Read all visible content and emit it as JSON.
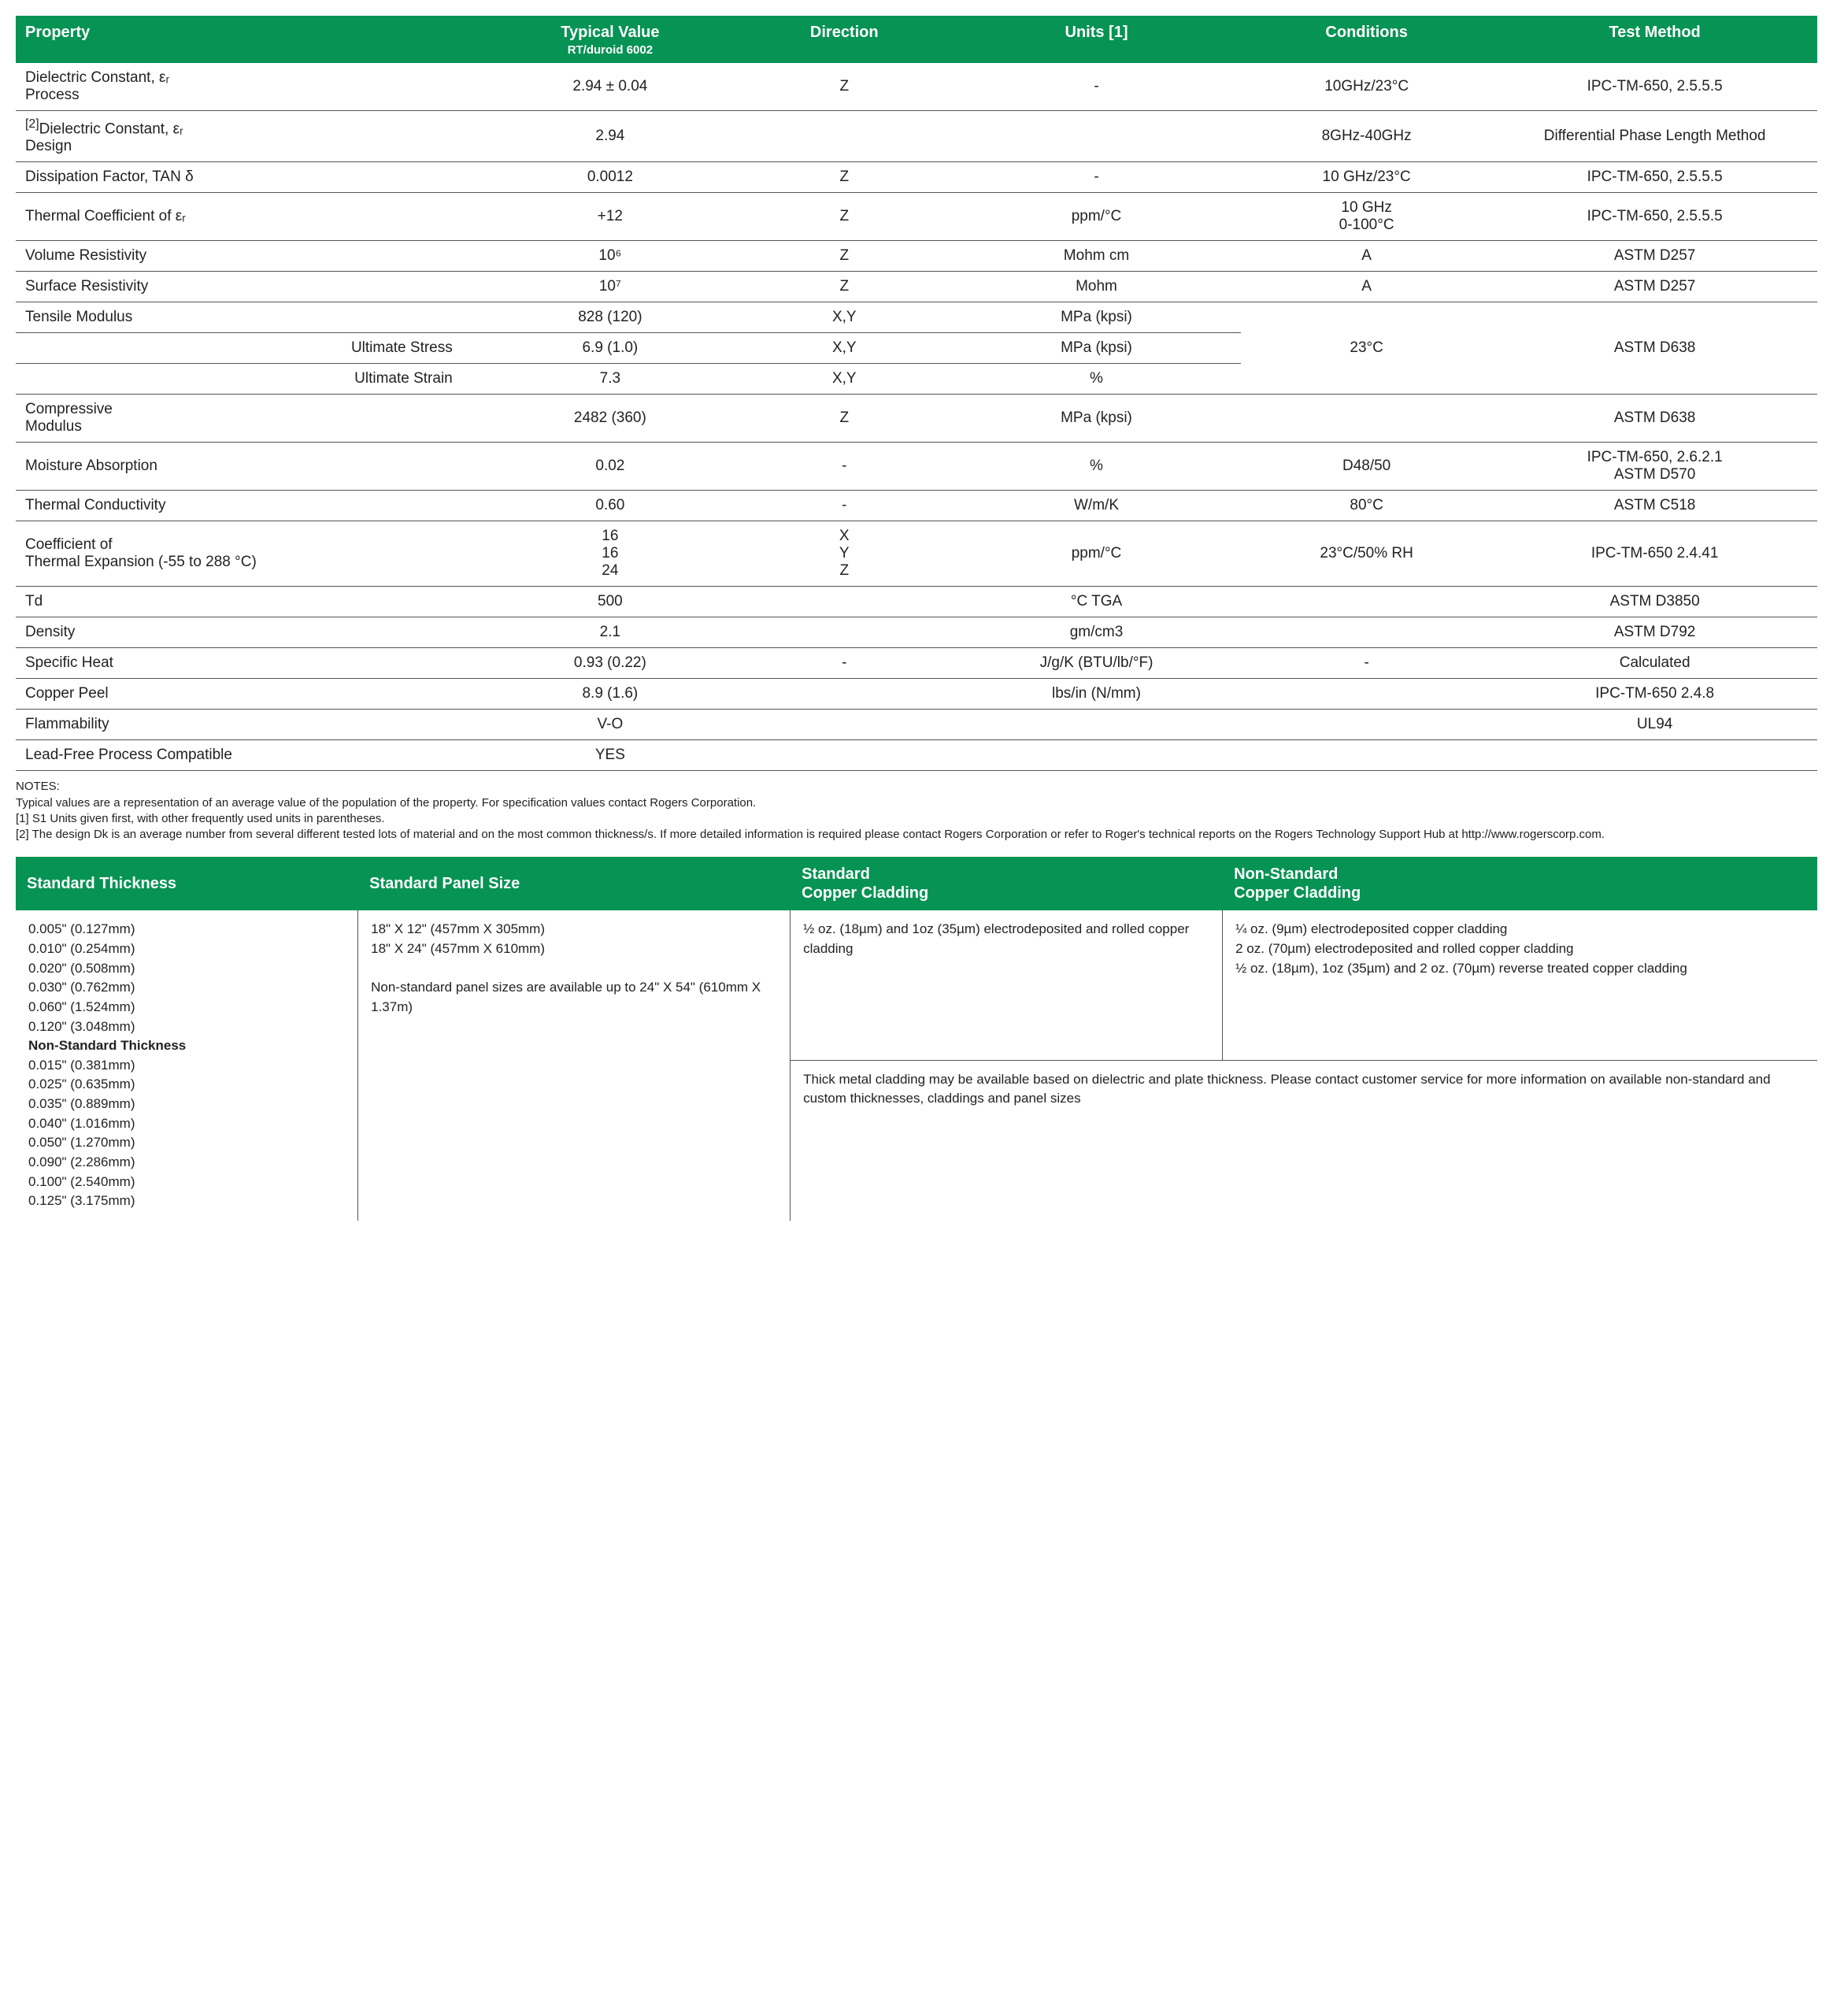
{
  "colors": {
    "header_bg": "#069353",
    "header_text": "#ffffff",
    "rule": "#555555",
    "body_text": "#222222"
  },
  "fonts": {
    "header_size_pt": 20,
    "body_size_pt": 19,
    "notes_size_pt": 15
  },
  "main_table": {
    "col_widths_pct": [
      26,
      14,
      12,
      16,
      14,
      18
    ],
    "headers": [
      {
        "label": "Property",
        "align": "left"
      },
      {
        "label": "Typical Value",
        "sub": "RT/duroid 6002",
        "align": "center"
      },
      {
        "label": "Direction",
        "align": "center"
      },
      {
        "label": "Units [1]",
        "align": "center"
      },
      {
        "label": "Conditions",
        "align": "center"
      },
      {
        "label": "Test Method",
        "align": "center"
      }
    ],
    "rows": [
      {
        "c": [
          "Dielectric Constant, εᵣ\nProcess",
          "2.94 ± 0.04",
          "Z",
          "-",
          "10GHz/23°C",
          "IPC-TM-650, 2.5.5.5"
        ],
        "align0": "left"
      },
      {
        "c": [
          "[2]Dielectric Constant, εᵣ\nDesign",
          "2.94",
          "",
          "",
          "8GHz-40GHz",
          "Differential Phase Length Method"
        ],
        "align0": "left",
        "sup0": true
      },
      {
        "c": [
          "Dissipation Factor, TAN δ",
          "0.0012",
          "Z",
          "-",
          "10 GHz/23°C",
          "IPC-TM-650, 2.5.5.5"
        ],
        "align0": "left"
      },
      {
        "c": [
          "Thermal Coefficient of εᵣ",
          "+12",
          "Z",
          "ppm/°C",
          "10 GHz\n0-100°C",
          "IPC-TM-650, 2.5.5.5"
        ],
        "align0": "left"
      },
      {
        "c": [
          "Volume Resistivity",
          "10⁶",
          "Z",
          "Mohm cm",
          "A",
          "ASTM D257"
        ],
        "align0": "left"
      },
      {
        "c": [
          "Surface Resistivity",
          "10⁷",
          "Z",
          "Mohm",
          "A",
          "ASTM D257"
        ],
        "align0": "left"
      },
      {
        "c": [
          "Tensile Modulus",
          "828 (120)",
          "X,Y",
          "MPa (kpsi)"
        ],
        "align0": "left",
        "merge45_start": true,
        "merge45_text4": "23°C",
        "merge45_text5": "ASTM D638",
        "merge45_rows": 3
      },
      {
        "c": [
          "Ultimate Stress",
          "6.9 (1.0)",
          "X,Y",
          "MPa (kpsi)"
        ],
        "align0": "right"
      },
      {
        "c": [
          "Ultimate Strain",
          "7.3",
          "X,Y",
          "%"
        ],
        "align0": "right"
      },
      {
        "c": [
          "Compressive\nModulus",
          "2482 (360)",
          "Z",
          "MPa (kpsi)",
          "",
          "ASTM D638"
        ],
        "align0": "left"
      },
      {
        "c": [
          "Moisture Absorption",
          "0.02",
          "-",
          "%",
          "D48/50",
          "IPC-TM-650, 2.6.2.1\nASTM D570"
        ],
        "align0": "left"
      },
      {
        "c": [
          "Thermal Conductivity",
          "0.60",
          "-",
          "W/m/K",
          "80°C",
          "ASTM C518"
        ],
        "align0": "left"
      },
      {
        "c": [
          "Coefficient of\nThermal Expansion (-55 to 288 °C)",
          "16\n16\n24",
          "X\nY\nZ",
          "ppm/°C",
          "23°C/50% RH",
          "IPC-TM-650 2.4.41"
        ],
        "align0": "left"
      },
      {
        "c": [
          "Td",
          "500",
          "",
          "°C TGA",
          "",
          "ASTM D3850"
        ],
        "align0": "left"
      },
      {
        "c": [
          "Density",
          "2.1",
          "",
          "gm/cm3",
          "",
          "ASTM D792"
        ],
        "align0": "left"
      },
      {
        "c": [
          "Specific Heat",
          "0.93 (0.22)",
          "-",
          "J/g/K (BTU/lb/°F)",
          "-",
          "Calculated"
        ],
        "align0": "left"
      },
      {
        "c": [
          "Copper Peel",
          "8.9 (1.6)",
          "",
          "lbs/in (N/mm)",
          "",
          "IPC-TM-650 2.4.8"
        ],
        "align0": "left"
      },
      {
        "c": [
          "Flammability",
          "V-O",
          "",
          "",
          "",
          "UL94"
        ],
        "align0": "left"
      },
      {
        "c": [
          "Lead-Free Process Compatible",
          "YES",
          "",
          "",
          "",
          ""
        ],
        "align0": "left"
      }
    ]
  },
  "notes": {
    "label": "NOTES:",
    "lines": [
      "Typical values are a representation of an average value of the population of the property. For specification values contact Rogers Corporation.",
      "[1] S1 Units given first, with other frequently used units in parentheses.",
      "[2] The design Dk is an average number from several different tested lots of material and on the most common thickness/s. If more detailed information is required please contact Rogers Corporation or refer to Roger's technical reports on the Rogers Technology Support Hub at http://www.rogerscorp.com."
    ]
  },
  "info_table": {
    "col_widths_pct": [
      19,
      24,
      24,
      33
    ],
    "headers": [
      "Standard Thickness",
      "Standard Panel Size",
      "Standard\nCopper Cladding",
      "Non-Standard\nCopper Cladding"
    ],
    "thickness": {
      "std": [
        "0.005\" (0.127mm)",
        "0.010\" (0.254mm)",
        "0.020\" (0.508mm)",
        "0.030\" (0.762mm)",
        "0.060\" (1.524mm)",
        "0.120\" (3.048mm)"
      ],
      "nonstd_label": "Non-Standard Thickness",
      "nonstd": [
        "0.015\" (0.381mm)",
        "0.025\" (0.635mm)",
        "0.035\" (0.889mm)",
        "0.040\" (1.016mm)",
        "0.050\" (1.270mm)",
        "0.090\" (2.286mm)",
        "0.100\" (2.540mm)",
        "0.125\" (3.175mm)"
      ]
    },
    "panel_size": "18\" X 12\" (457mm X 305mm)\n18\" X 24\" (457mm X 610mm)\n\nNon-standard panel sizes are available up to 24\" X 54\" (610mm X 1.37m)",
    "std_cladding": "½ oz. (18µm) and 1oz (35µm) electrodeposited and rolled copper cladding",
    "nonstd_cladding": "¼ oz. (9µm) electrodeposited copper cladding\n2 oz. (70µm) electrodeposited and rolled copper cladding\n½ oz. (18µm), 1oz (35µm) and 2 oz. (70µm) reverse treated copper cladding",
    "footer_note": "Thick metal cladding may be available based on dielectric and plate thickness. Please contact customer service for more information on available non-standard and custom thicknesses, claddings and panel sizes"
  }
}
